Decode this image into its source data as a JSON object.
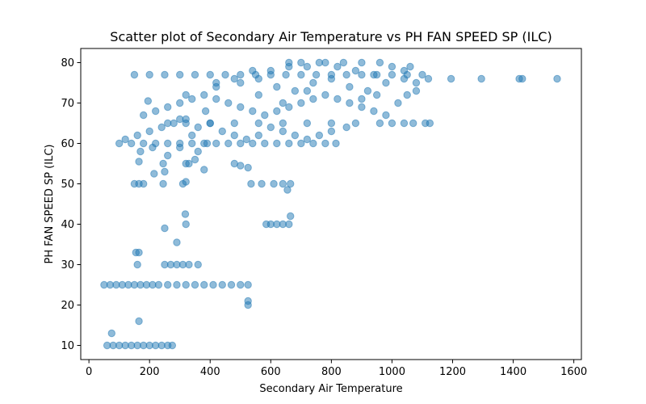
{
  "chart_data": {
    "type": "scatter",
    "title": "Scatter plot of Secondary Air Temperature vs PH FAN SPEED SP (ILC)",
    "xlabel": "Secondary Air Temperature",
    "ylabel": "PH FAN SPEED SP (ILC)",
    "xlim": [
      -27,
      1625
    ],
    "ylim": [
      6.5,
      83.5
    ],
    "xticks": [
      0,
      200,
      400,
      600,
      800,
      1000,
      1200,
      1400,
      1600
    ],
    "yticks": [
      10,
      20,
      30,
      40,
      50,
      60,
      70,
      80
    ],
    "grid": false,
    "legend": "none",
    "color": "#1f77b4",
    "series": [
      {
        "points": [
          [
            60,
            10
          ],
          [
            80,
            10
          ],
          [
            100,
            10
          ],
          [
            120,
            10
          ],
          [
            140,
            10
          ],
          [
            160,
            10
          ],
          [
            180,
            10
          ],
          [
            200,
            10
          ],
          [
            220,
            10
          ],
          [
            240,
            10
          ],
          [
            260,
            10
          ],
          [
            275,
            10
          ],
          [
            75,
            13
          ],
          [
            165,
            16
          ],
          [
            50,
            25
          ],
          [
            70,
            25
          ],
          [
            90,
            25
          ],
          [
            110,
            25
          ],
          [
            130,
            25
          ],
          [
            150,
            25
          ],
          [
            170,
            25
          ],
          [
            190,
            25
          ],
          [
            210,
            25
          ],
          [
            230,
            25
          ],
          [
            260,
            25
          ],
          [
            290,
            25
          ],
          [
            320,
            25
          ],
          [
            350,
            25
          ],
          [
            380,
            25
          ],
          [
            410,
            25
          ],
          [
            440,
            25
          ],
          [
            470,
            25
          ],
          [
            500,
            25
          ],
          [
            525,
            25
          ],
          [
            525,
            21
          ],
          [
            525,
            20
          ],
          [
            155,
            33
          ],
          [
            165,
            33
          ],
          [
            160,
            30
          ],
          [
            250,
            30
          ],
          [
            270,
            30
          ],
          [
            290,
            30
          ],
          [
            310,
            30
          ],
          [
            330,
            30
          ],
          [
            360,
            30
          ],
          [
            290,
            35.5
          ],
          [
            250,
            39
          ],
          [
            320,
            40
          ],
          [
            318,
            42.5
          ],
          [
            585,
            40
          ],
          [
            600,
            40
          ],
          [
            620,
            40
          ],
          [
            640,
            40
          ],
          [
            660,
            40
          ],
          [
            665,
            42
          ],
          [
            150,
            50
          ],
          [
            165,
            50
          ],
          [
            180,
            50
          ],
          [
            245,
            50
          ],
          [
            310,
            50
          ],
          [
            320,
            50.5
          ],
          [
            535,
            50
          ],
          [
            570,
            50
          ],
          [
            610,
            50
          ],
          [
            640,
            50
          ],
          [
            665,
            50
          ],
          [
            655,
            48.5
          ],
          [
            480,
            55
          ],
          [
            500,
            54.5
          ],
          [
            525,
            54
          ],
          [
            165,
            55.5
          ],
          [
            245,
            55
          ],
          [
            320,
            55
          ],
          [
            330,
            55
          ],
          [
            350,
            56
          ],
          [
            380,
            53.5
          ],
          [
            215,
            52.5
          ],
          [
            250,
            53
          ],
          [
            100,
            60
          ],
          [
            140,
            60
          ],
          [
            180,
            60
          ],
          [
            220,
            60
          ],
          [
            260,
            60
          ],
          [
            300,
            60
          ],
          [
            340,
            60
          ],
          [
            380,
            60
          ],
          [
            420,
            60
          ],
          [
            460,
            60
          ],
          [
            500,
            60
          ],
          [
            540,
            60
          ],
          [
            580,
            60
          ],
          [
            620,
            60
          ],
          [
            660,
            60
          ],
          [
            700,
            60
          ],
          [
            740,
            60
          ],
          [
            780,
            60
          ],
          [
            815,
            60
          ],
          [
            120,
            61
          ],
          [
            160,
            62
          ],
          [
            200,
            63
          ],
          [
            240,
            64
          ],
          [
            280,
            65
          ],
          [
            320,
            66
          ],
          [
            360,
            64
          ],
          [
            400,
            65
          ],
          [
            440,
            63
          ],
          [
            480,
            62
          ],
          [
            520,
            61
          ],
          [
            560,
            62
          ],
          [
            600,
            64
          ],
          [
            640,
            63
          ],
          [
            680,
            62
          ],
          [
            720,
            61
          ],
          [
            760,
            62
          ],
          [
            800,
            63
          ],
          [
            850,
            64
          ],
          [
            170,
            58
          ],
          [
            210,
            59
          ],
          [
            260,
            57
          ],
          [
            300,
            59
          ],
          [
            260,
            65
          ],
          [
            320,
            65
          ],
          [
            400,
            65
          ],
          [
            480,
            65
          ],
          [
            560,
            65
          ],
          [
            640,
            65
          ],
          [
            720,
            65
          ],
          [
            800,
            65
          ],
          [
            880,
            65
          ],
          [
            960,
            65
          ],
          [
            1000,
            65
          ],
          [
            1040,
            65
          ],
          [
            1070,
            65
          ],
          [
            1110,
            65
          ],
          [
            1125,
            65
          ],
          [
            180,
            67
          ],
          [
            220,
            68
          ],
          [
            260,
            69
          ],
          [
            300,
            70
          ],
          [
            340,
            71
          ],
          [
            380,
            72
          ],
          [
            420,
            71
          ],
          [
            460,
            70
          ],
          [
            500,
            69
          ],
          [
            540,
            68
          ],
          [
            580,
            67
          ],
          [
            620,
            68
          ],
          [
            660,
            69
          ],
          [
            700,
            70
          ],
          [
            740,
            71
          ],
          [
            780,
            72
          ],
          [
            820,
            71
          ],
          [
            860,
            70
          ],
          [
            900,
            69
          ],
          [
            940,
            68
          ],
          [
            980,
            67
          ],
          [
            1020,
            70
          ],
          [
            1050,
            72
          ],
          [
            1080,
            73
          ],
          [
            195,
            70.5
          ],
          [
            320,
            72
          ],
          [
            420,
            74
          ],
          [
            500,
            75
          ],
          [
            560,
            76
          ],
          [
            620,
            74
          ],
          [
            680,
            73
          ],
          [
            740,
            75
          ],
          [
            800,
            76
          ],
          [
            860,
            74
          ],
          [
            920,
            73
          ],
          [
            980,
            75
          ],
          [
            1040,
            76
          ],
          [
            1080,
            75
          ],
          [
            150,
            77
          ],
          [
            200,
            77
          ],
          [
            250,
            77
          ],
          [
            300,
            77
          ],
          [
            350,
            77
          ],
          [
            400,
            77
          ],
          [
            450,
            77
          ],
          [
            500,
            77
          ],
          [
            550,
            77
          ],
          [
            600,
            77
          ],
          [
            650,
            77
          ],
          [
            700,
            77
          ],
          [
            750,
            77
          ],
          [
            800,
            77
          ],
          [
            850,
            77
          ],
          [
            900,
            77
          ],
          [
            950,
            77
          ],
          [
            1000,
            77
          ],
          [
            1050,
            77
          ],
          [
            1100,
            77
          ],
          [
            420,
            75
          ],
          [
            480,
            76
          ],
          [
            540,
            78
          ],
          [
            600,
            78
          ],
          [
            660,
            79
          ],
          [
            720,
            79
          ],
          [
            780,
            80
          ],
          [
            840,
            80
          ],
          [
            900,
            80
          ],
          [
            960,
            80
          ],
          [
            1000,
            79
          ],
          [
            1040,
            78
          ],
          [
            1060,
            79
          ],
          [
            660,
            80
          ],
          [
            700,
            80
          ],
          [
            760,
            80
          ],
          [
            820,
            79
          ],
          [
            880,
            78
          ],
          [
            940,
            77
          ],
          [
            385,
            68
          ],
          [
            300,
            66
          ],
          [
            340,
            62
          ],
          [
            360,
            58
          ],
          [
            390,
            60
          ],
          [
            560,
            72
          ],
          [
            640,
            70
          ],
          [
            720,
            73
          ],
          [
            900,
            71
          ],
          [
            950,
            72
          ],
          [
            1120,
            76
          ],
          [
            1195,
            76
          ],
          [
            1295,
            76
          ],
          [
            1420,
            76
          ],
          [
            1430,
            76
          ],
          [
            1545,
            76
          ]
        ]
      }
    ]
  }
}
